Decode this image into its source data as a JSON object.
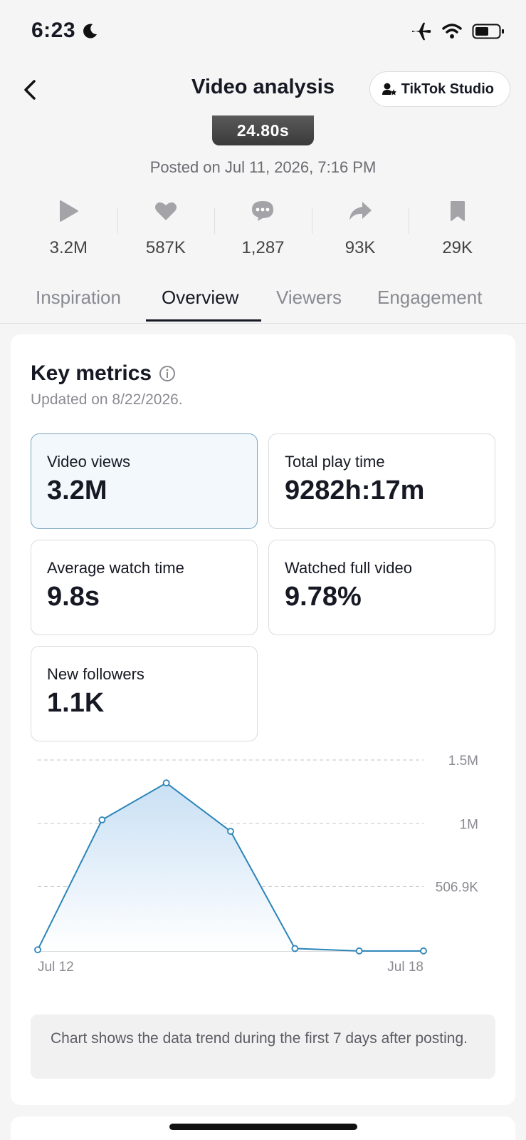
{
  "status_bar": {
    "time": "6:23"
  },
  "header": {
    "title": "Video analysis",
    "studio_label": "TikTok Studio"
  },
  "video": {
    "duration": "24.80s",
    "posted": "Posted on Jul 11, 2026, 7:16 PM"
  },
  "stats": [
    {
      "icon": "play-icon",
      "value": "3.2M"
    },
    {
      "icon": "heart-icon",
      "value": "587K"
    },
    {
      "icon": "comment-icon",
      "value": "1,287"
    },
    {
      "icon": "share-icon",
      "value": "93K"
    },
    {
      "icon": "bookmark-icon",
      "value": "29K"
    }
  ],
  "tabs": [
    "Inspiration",
    "Overview",
    "Viewers",
    "Engagement"
  ],
  "active_tab": "Overview",
  "key_metrics": {
    "title": "Key metrics",
    "updated": "Updated on 8/22/2026.",
    "items": [
      {
        "label": "Video views",
        "value": "3.2M",
        "selected": true
      },
      {
        "label": "Total play time",
        "value": "9282h:17m"
      },
      {
        "label": "Average watch time",
        "value": "9.8s"
      },
      {
        "label": "Watched full video",
        "value": "9.78%"
      },
      {
        "label": "New followers",
        "value": "1.1K"
      }
    ]
  },
  "chart_data": {
    "type": "area",
    "x": [
      "Jul 12",
      "Jul 13",
      "Jul 14",
      "Jul 15",
      "Jul 16",
      "Jul 17",
      "Jul 18"
    ],
    "values": [
      10000,
      1030000,
      1320000,
      940000,
      20000,
      1000,
      1000
    ],
    "ytick_labels": [
      "1.5M",
      "1M",
      "506.9K"
    ],
    "ytick_values": [
      1500000,
      1000000,
      506900
    ],
    "xtick_labels": [
      "Jul 12",
      "Jul 18"
    ],
    "ylim": [
      0,
      1500000
    ],
    "grid": true,
    "colors": {
      "line": "#2b84b8",
      "fill_top": "#c9e0f4",
      "fill_bottom": "#ffffff"
    }
  },
  "chart_note": "Chart shows the data trend during the first 7 days after posting.",
  "colors": {
    "accent": "#2b84b8",
    "icon_gray": "#a4a4a8"
  }
}
